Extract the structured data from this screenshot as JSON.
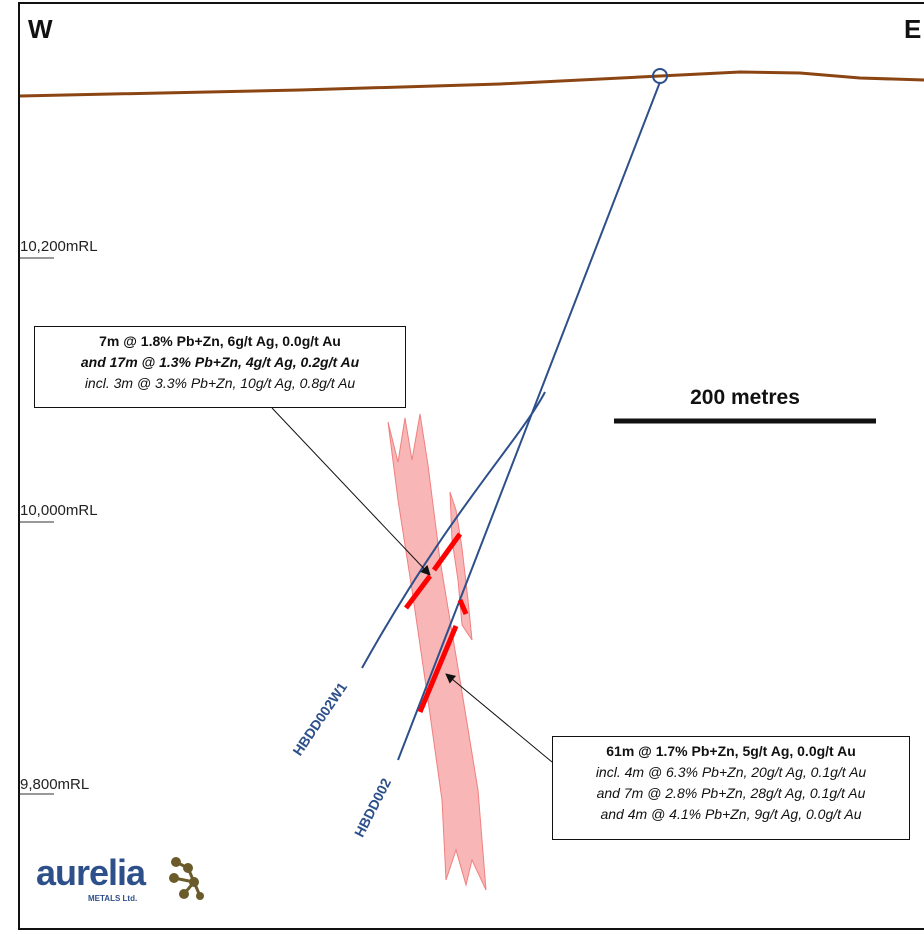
{
  "compass": {
    "west": "W",
    "east": "E"
  },
  "rl_labels": [
    "10,200mRL",
    "10,000mRL",
    "9,800mRL"
  ],
  "scale_bar": {
    "label": "200 metres"
  },
  "drill_holes": [
    "HBDD002W1",
    "HBDD002"
  ],
  "callout_upper": {
    "line1": "7m @ 1.8% Pb+Zn, 6g/t Ag, 0.0g/t Au",
    "line2": "and 17m @ 1.3% Pb+Zn, 4g/t Ag, 0.2g/t Au",
    "line3": "incl. 3m @ 3.3% Pb+Zn, 10g/t Ag, 0.8g/t Au"
  },
  "callout_lower": {
    "line1": "61m @ 1.7% Pb+Zn, 5g/t Ag, 0.0g/t Au",
    "line2": "incl. 4m @ 6.3% Pb+Zn, 20g/t Ag, 0.1g/t Au",
    "line3": "and 7m @ 2.8% Pb+Zn, 28g/t Ag, 0.1g/t Au",
    "line4": "and 4m @ 4.1% Pb+Zn, 9g/t Ag, 0.0g/t Au"
  },
  "logo": {
    "name": "aurelia",
    "sub": "METALS Ltd."
  },
  "colors": {
    "surface": "#8b4513",
    "drillhole": "#2d4f8a",
    "lode_fill": "#f7a9a9",
    "intercept": "#ff0000",
    "logo_blue": "#2d4f8a",
    "logo_gold": "#6b5a2a"
  }
}
